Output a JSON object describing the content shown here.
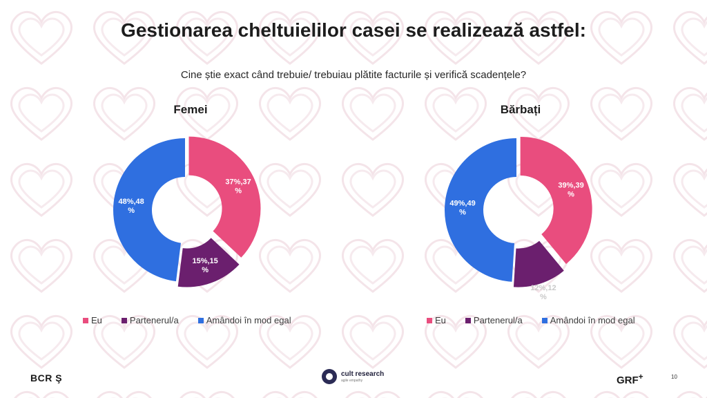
{
  "slide": {
    "title": "Gestionarea cheltuielilor casei se realizează astfel:",
    "subtitle": "Cine știe exact când trebuie/ trebuiau plătite facturile și verifică scadențele?",
    "page_number": "10"
  },
  "logos": {
    "bcr": "BCR",
    "bcr_symbol": "Ş",
    "cult_name": "cult research",
    "cult_tagline": "agile empathy",
    "grf": "GRF",
    "grf_plus": "+"
  },
  "colors": {
    "eu": "#E94D7E",
    "partener": "#6B1F6E",
    "amandoi": "#2F6FE0",
    "pattern": "#F4E4E9"
  },
  "chart_data": [
    {
      "type": "pie",
      "variant": "donut",
      "title": "Femei",
      "categories": [
        "Eu",
        "Partenerul/a",
        "Amândoi în mod egal"
      ],
      "values": [
        37,
        15,
        48
      ],
      "data_labels": [
        "37%,37\n%",
        "15%,15\n%",
        "48%,48\n%"
      ],
      "legend_position": "bottom"
    },
    {
      "type": "pie",
      "variant": "donut",
      "title": "Bărbați",
      "categories": [
        "Eu",
        "Partenerul/a",
        "Amândoi în mod egal"
      ],
      "values": [
        39,
        12,
        49
      ],
      "data_labels": [
        "39%,39\n%",
        "12%,12\n%",
        "49%,49\n%"
      ],
      "legend_position": "bottom"
    }
  ]
}
